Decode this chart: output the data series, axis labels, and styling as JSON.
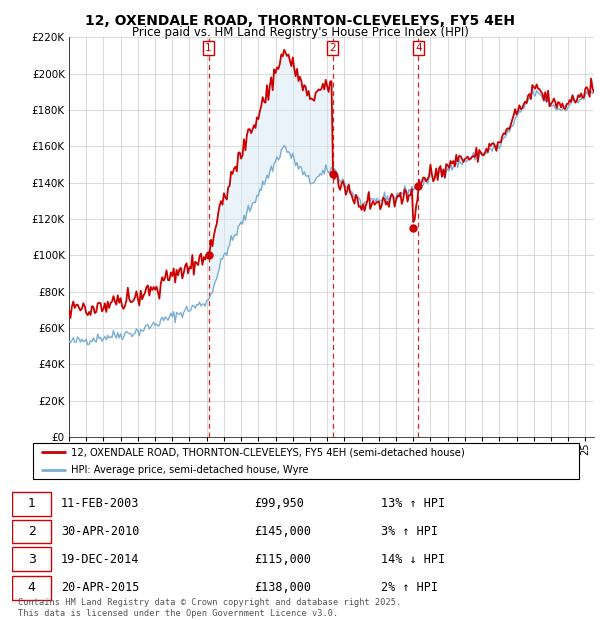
{
  "title": "12, OXENDALE ROAD, THORNTON-CLEVELEYS, FY5 4EH",
  "subtitle": "Price paid vs. HM Land Registry's House Price Index (HPI)",
  "red_line_label": "12, OXENDALE ROAD, THORNTON-CLEVELEYS, FY5 4EH (semi-detached house)",
  "blue_line_label": "HPI: Average price, semi-detached house, Wyre",
  "footer": "Contains HM Land Registry data © Crown copyright and database right 2025.\nThis data is licensed under the Open Government Licence v3.0.",
  "sales": [
    {
      "num": 1,
      "date": "11-FEB-2003",
      "price": 99950,
      "pct": "13%",
      "dir": "↑"
    },
    {
      "num": 2,
      "date": "30-APR-2010",
      "price": 145000,
      "pct": "3%",
      "dir": "↑"
    },
    {
      "num": 3,
      "date": "19-DEC-2014",
      "price": 115000,
      "pct": "14%",
      "dir": "↓"
    },
    {
      "num": 4,
      "date": "20-APR-2015",
      "price": 138000,
      "pct": "2%",
      "dir": "↑"
    }
  ],
  "sale_years": [
    2003.11,
    2010.33,
    2014.96,
    2015.3
  ],
  "sale_prices": [
    99950,
    145000,
    115000,
    138000
  ],
  "ylim": [
    0,
    220000
  ],
  "yticks": [
    0,
    20000,
    40000,
    60000,
    80000,
    100000,
    120000,
    140000,
    160000,
    180000,
    200000,
    220000
  ],
  "red_color": "#cc0000",
  "blue_color": "#7aadd4",
  "vline_color": "#cc0000",
  "shading_color": "#d6e8f5",
  "grid_color": "#cccccc",
  "background_color": "#ffffff",
  "box_color": "#cc0000",
  "xstart": 1995,
  "xend": 2025.5
}
